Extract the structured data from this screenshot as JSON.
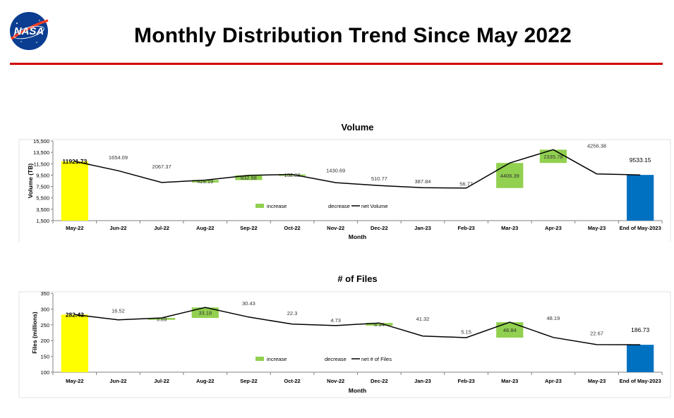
{
  "slide": {
    "title": "Monthly Distribution Trend Since May 2022",
    "logo_text": "NASA"
  },
  "colors": {
    "start_bar": "#ffff00",
    "end_bar": "#0070c0",
    "increase": "#92d050",
    "line": "#000000",
    "title_rule": "#d00000"
  },
  "chart_data": [
    {
      "type": "bar",
      "subtype": "waterfall",
      "title": "Volume",
      "xlabel": "Month",
      "ylabel": "Volume (TB)",
      "ylim": [
        1500,
        15500
      ],
      "yticks": [
        "1,500",
        "3,500",
        "5,500",
        "7,500",
        "9,500",
        "11,500",
        "13,500",
        "15,500"
      ],
      "ytick_values": [
        1500,
        3500,
        5500,
        7500,
        9500,
        11500,
        13500,
        15500
      ],
      "categories": [
        "May-22",
        "Jun-22",
        "Jul-22",
        "Aug-22",
        "Sep-22",
        "Oct-22",
        "Nov-22",
        "Dec-22",
        "Jan-23",
        "Feb-23",
        "Mar-23",
        "Apr-23",
        "May-23",
        "End of May-2023"
      ],
      "start_label": "11921.73",
      "end_label": "9533.15",
      "change_labels": [
        "",
        "1654.09",
        "2067.37",
        "428.19",
        "832.98",
        "152.88",
        "1430.69",
        "510.77",
        "387.84",
        "56.77",
        "4406.39",
        "2335.78",
        "4256.38",
        ""
      ],
      "changes": [
        0,
        -1654.09,
        -2067.37,
        428.19,
        832.98,
        152.88,
        -1430.69,
        -510.77,
        -387.84,
        -56.77,
        4406.39,
        2335.78,
        -4256.38,
        0
      ],
      "net": [
        11921.73,
        10267.64,
        8200.27,
        8628.46,
        9461.44,
        9614.32,
        8183.63,
        7672.86,
        7285.02,
        7228.25,
        11634.64,
        13970.42,
        9714.04,
        9533.15
      ],
      "legend": [
        "increase",
        "decrease",
        "net Volume"
      ],
      "grid": false
    },
    {
      "type": "bar",
      "subtype": "waterfall",
      "title": "# of Files",
      "xlabel": "Month",
      "ylabel": "Files (millions)",
      "ylim": [
        100,
        350
      ],
      "yticks": [
        "100",
        "150",
        "200",
        "250",
        "300",
        "350"
      ],
      "ytick_values": [
        100,
        150,
        200,
        250,
        300,
        350
      ],
      "categories": [
        "May-22",
        "Jun-22",
        "Jul-22",
        "Aug-22",
        "Sep-22",
        "Oct-22",
        "Nov-22",
        "Dec-22",
        "Jan-23",
        "Feb-23",
        "Mar-23",
        "Apr-23",
        "May-23",
        "End of May-2023"
      ],
      "start_label": "282.42",
      "end_label": "186.73",
      "change_labels": [
        "",
        "16.52",
        "5.89",
        "33.18",
        "30.43",
        "22.3",
        "4.73",
        "8.34",
        "41.32",
        "5.15",
        "48.84",
        "48.19",
        "22.67",
        ""
      ],
      "changes": [
        0,
        -16.52,
        5.89,
        33.18,
        -30.43,
        -22.3,
        -4.73,
        8.34,
        -41.32,
        -5.15,
        48.84,
        -48.19,
        -22.67,
        0
      ],
      "net": [
        282.42,
        265.9,
        271.79,
        304.97,
        274.54,
        252.24,
        247.51,
        255.85,
        214.53,
        209.38,
        258.22,
        210.03,
        187.36,
        186.73
      ],
      "legend": [
        "increase",
        "decrease",
        "net # of Files"
      ],
      "grid": false
    }
  ]
}
